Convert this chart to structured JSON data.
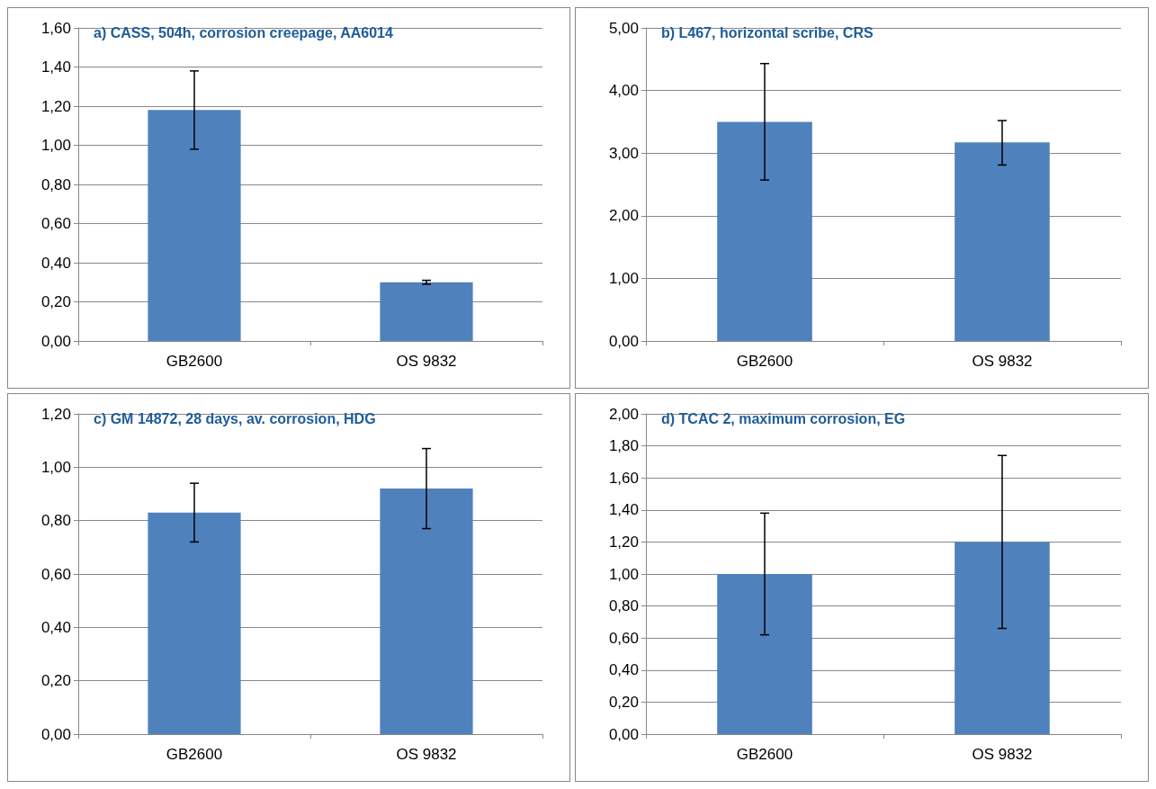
{
  "chart_data": [
    {
      "type": "bar",
      "title": "a) CASS, 504h, corrosion creepage, AA6014",
      "categories": [
        "GB2600",
        "OS 9832"
      ],
      "values": [
        1.18,
        0.3
      ],
      "errors": [
        [
          0.98,
          1.38
        ],
        [
          0.29,
          0.31
        ]
      ],
      "color": "#4f81bd",
      "ylim": [
        0,
        1.6
      ],
      "yticks": [
        {
          "value": 0,
          "label": "0,00"
        },
        {
          "value": 0.2,
          "label": "0,20"
        },
        {
          "value": 0.4,
          "label": "0,40"
        },
        {
          "value": 0.6,
          "label": "0,60"
        },
        {
          "value": 0.8,
          "label": "0,80"
        },
        {
          "value": 1.0,
          "label": "1,00"
        },
        {
          "value": 1.2,
          "label": "1,20"
        },
        {
          "value": 1.4,
          "label": "1,40"
        },
        {
          "value": 1.6,
          "label": "1,60"
        }
      ],
      "grid": "y"
    },
    {
      "type": "bar",
      "title": "b) L467, horizontal scribe, CRS",
      "categories": [
        "GB2600",
        "OS 9832"
      ],
      "values": [
        3.5,
        3.17
      ],
      "errors": [
        [
          2.57,
          4.43
        ],
        [
          2.81,
          3.52
        ]
      ],
      "color": "#4f81bd",
      "ylim": [
        0,
        5
      ],
      "yticks": [
        {
          "value": 0,
          "label": "0,00"
        },
        {
          "value": 1,
          "label": "1,00"
        },
        {
          "value": 2,
          "label": "2,00"
        },
        {
          "value": 3,
          "label": "3,00"
        },
        {
          "value": 4,
          "label": "4,00"
        },
        {
          "value": 5,
          "label": "5,00"
        }
      ],
      "grid": "y"
    },
    {
      "type": "bar",
      "title": "c) GM 14872, 28 days, av. corrosion, HDG",
      "categories": [
        "GB2600",
        "OS 9832"
      ],
      "values": [
        0.83,
        0.92
      ],
      "errors": [
        [
          0.72,
          0.94
        ],
        [
          0.77,
          1.07
        ]
      ],
      "color": "#4f81bd",
      "ylim": [
        0,
        1.2
      ],
      "yticks": [
        {
          "value": 0,
          "label": "0,00"
        },
        {
          "value": 0.2,
          "label": "0,20"
        },
        {
          "value": 0.4,
          "label": "0,40"
        },
        {
          "value": 0.6,
          "label": "0,60"
        },
        {
          "value": 0.8,
          "label": "0,80"
        },
        {
          "value": 1.0,
          "label": "1,00"
        },
        {
          "value": 1.2,
          "label": "1,20"
        }
      ],
      "grid": "y"
    },
    {
      "type": "bar",
      "title": "d) TCAC 2, maximum corrosion, EG",
      "categories": [
        "GB2600",
        "OS 9832"
      ],
      "values": [
        1.0,
        1.2
      ],
      "errors": [
        [
          0.62,
          1.38
        ],
        [
          0.66,
          1.74
        ]
      ],
      "color": "#4f81bd",
      "ylim": [
        0,
        2
      ],
      "yticks": [
        {
          "value": 0,
          "label": "0,00"
        },
        {
          "value": 0.2,
          "label": "0,20"
        },
        {
          "value": 0.4,
          "label": "0,40"
        },
        {
          "value": 0.6,
          "label": "0,60"
        },
        {
          "value": 0.8,
          "label": "0,80"
        },
        {
          "value": 1.0,
          "label": "1,00"
        },
        {
          "value": 1.2,
          "label": "1,20"
        },
        {
          "value": 1.4,
          "label": "1,40"
        },
        {
          "value": 1.6,
          "label": "1,60"
        },
        {
          "value": 1.8,
          "label": "1,80"
        },
        {
          "value": 2.0,
          "label": "2,00"
        }
      ],
      "grid": "y"
    }
  ]
}
